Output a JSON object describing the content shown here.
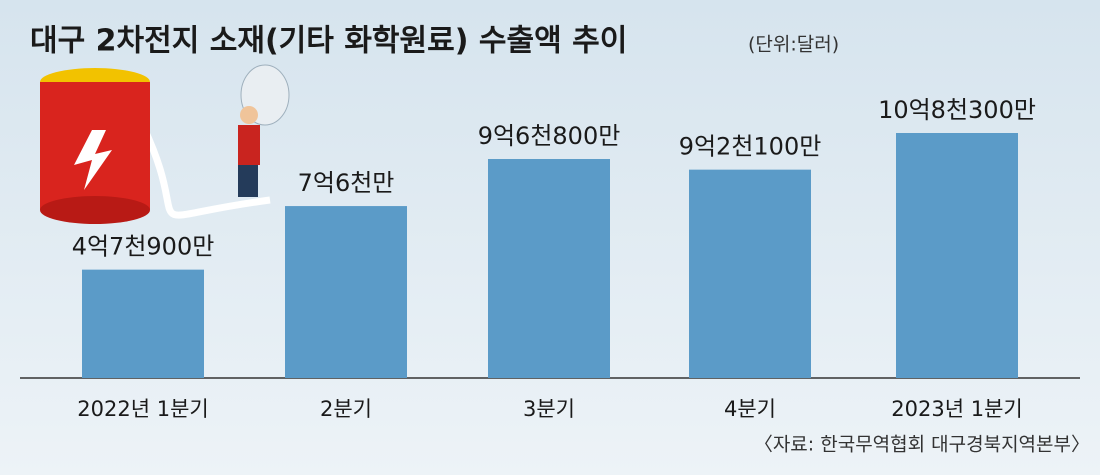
{
  "chart_data": {
    "type": "bar",
    "title": "대구 2차전지 소재(기타 화학원료) 수출액 추이",
    "unit_note": "(단위:달러)",
    "source": "〈자료: 한국무역협회 대구경북지역본부〉",
    "categories": [
      "2022년 1분기",
      "2분기",
      "3분기",
      "4분기",
      "2023년 1분기"
    ],
    "values": [
      479000000,
      760000000,
      968000000,
      921000000,
      1083000000
    ],
    "value_labels": [
      "4억7천900만",
      "7억6천만",
      "9억6천800만",
      "9억2천100만",
      "10억8천300만"
    ],
    "color": "#5b9bc8"
  }
}
